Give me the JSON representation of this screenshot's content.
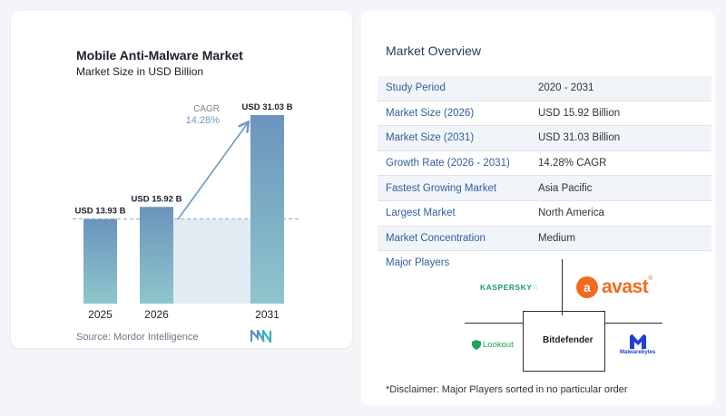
{
  "chart_data": {
    "type": "bar",
    "title": "Mobile Anti-Malware Market",
    "subtitle": "Market Size in USD Billion",
    "categories": [
      "2025",
      "2026",
      "2031"
    ],
    "values": [
      13.93,
      15.92,
      31.03
    ],
    "value_labels": [
      "USD 13.93 B",
      "USD 15.92 B",
      "USD 31.03 B"
    ],
    "cagr_label": "CAGR",
    "cagr_value": "14.28%",
    "bar_color_top": "#6b94bd",
    "bar_color_bottom": "#8ec6cc",
    "shade_color": "#e2ebf4",
    "arrow_color": "#6c9ac4"
  },
  "source": "Source:  Mordor Intelligence",
  "overview": {
    "title": "Market Overview",
    "rows": [
      {
        "label": "Study Period",
        "value": "2020 - 2031"
      },
      {
        "label": "Market Size (2026)",
        "value": "USD 15.92 Billion"
      },
      {
        "label": "Market Size (2031)",
        "value": "USD 31.03 Billion"
      },
      {
        "label": "Growth Rate (2026 - 2031)",
        "value": "14.28% CAGR"
      },
      {
        "label": "Fastest Growing Market",
        "value": "Asia Pacific"
      },
      {
        "label": "Largest Market",
        "value": "North America"
      },
      {
        "label": "Market Concentration",
        "value": "Medium"
      }
    ]
  },
  "players": {
    "title": "Major Players",
    "kaspersky": "KASPERSKY",
    "avast": "avast",
    "lookout": "Lookout",
    "bitdefender": "Bitdefender",
    "malwarebytes": "Malwarebytes"
  },
  "disclaimer": "*Disclaimer: Major Players sorted in no particular order"
}
